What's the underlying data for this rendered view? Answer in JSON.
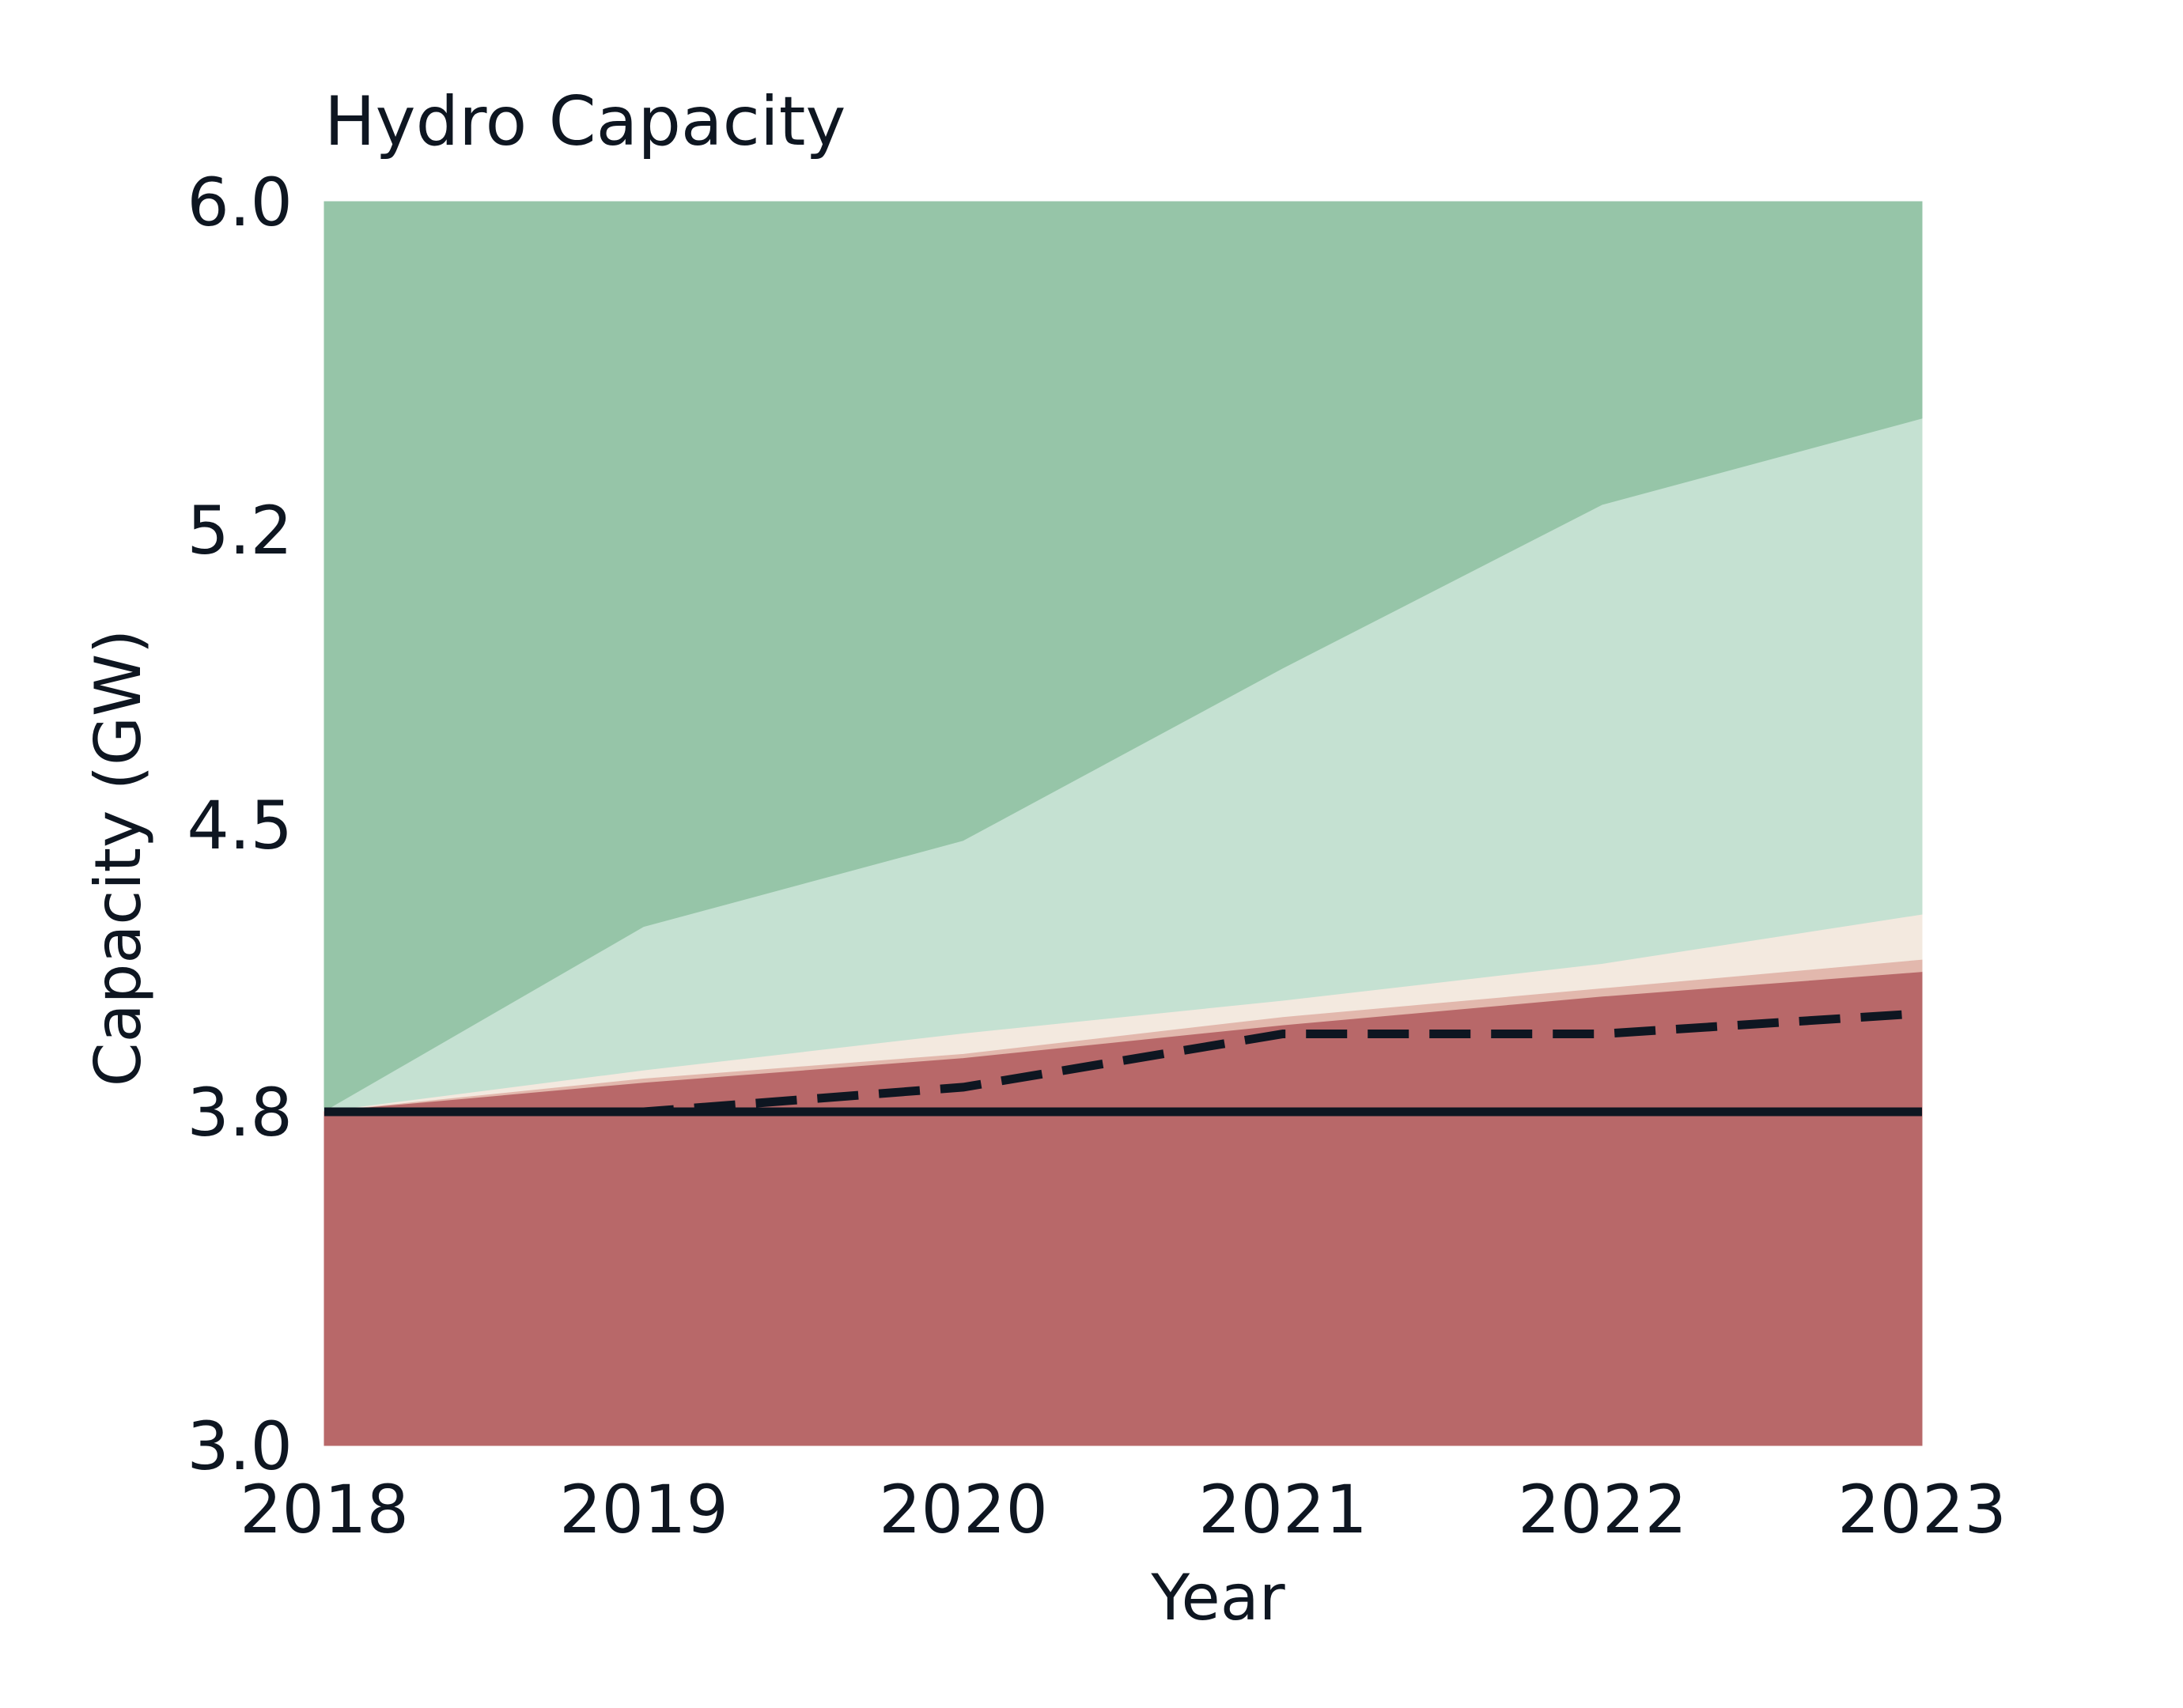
{
  "chart_data": {
    "type": "area",
    "title": "Hydro Capacity",
    "xlabel": "Year",
    "ylabel": "Capacity (GW)",
    "x": [
      2018,
      2019,
      2020,
      2021,
      2022,
      2023
    ],
    "x_ticks": [
      "2018",
      "2019",
      "2020",
      "2021",
      "2022",
      "2023"
    ],
    "y_ticks": [
      3.0,
      3.8,
      4.5,
      5.2,
      6.0
    ],
    "y_tick_labels": [
      "3.0",
      "3.8",
      "4.5",
      "5.2",
      "6.0"
    ],
    "xlim": [
      2018,
      2023
    ],
    "ylim": [
      3.0,
      6.0
    ],
    "grid": false,
    "legend": "none",
    "bands": [
      {
        "from": "top",
        "to": [
          3.8,
          4.25,
          4.46,
          4.87,
          5.26,
          5.47
        ],
        "color": "#96c5a8"
      },
      {
        "from": [
          3.8,
          4.25,
          4.46,
          4.87,
          5.26,
          5.47
        ],
        "to": [
          3.8,
          3.9,
          3.99,
          4.07,
          4.16,
          4.28
        ],
        "color": "#c5e1d2"
      },
      {
        "from": [
          3.8,
          3.9,
          3.99,
          4.07,
          4.16,
          4.28
        ],
        "to": [
          3.8,
          3.88,
          3.94,
          4.03,
          4.1,
          4.17
        ],
        "color": "#f3e9df"
      },
      {
        "from": [
          3.8,
          3.88,
          3.94,
          4.03,
          4.1,
          4.17
        ],
        "to": [
          3.8,
          3.87,
          3.93,
          4.01,
          4.08,
          4.14
        ],
        "color": "#e2b8ad"
      },
      {
        "from": [
          3.8,
          3.87,
          3.93,
          4.01,
          4.08,
          4.14
        ],
        "to": "bottom",
        "color": "#b86869"
      }
    ],
    "series": [
      {
        "style": "dashed",
        "color": "#0e1621",
        "values": [
          3.8,
          3.8,
          3.86,
          3.99,
          3.99,
          4.04
        ]
      },
      {
        "style": "solid",
        "color": "#0e1621",
        "values": [
          3.8,
          3.8,
          3.8,
          3.8,
          3.8,
          3.8
        ]
      }
    ]
  }
}
